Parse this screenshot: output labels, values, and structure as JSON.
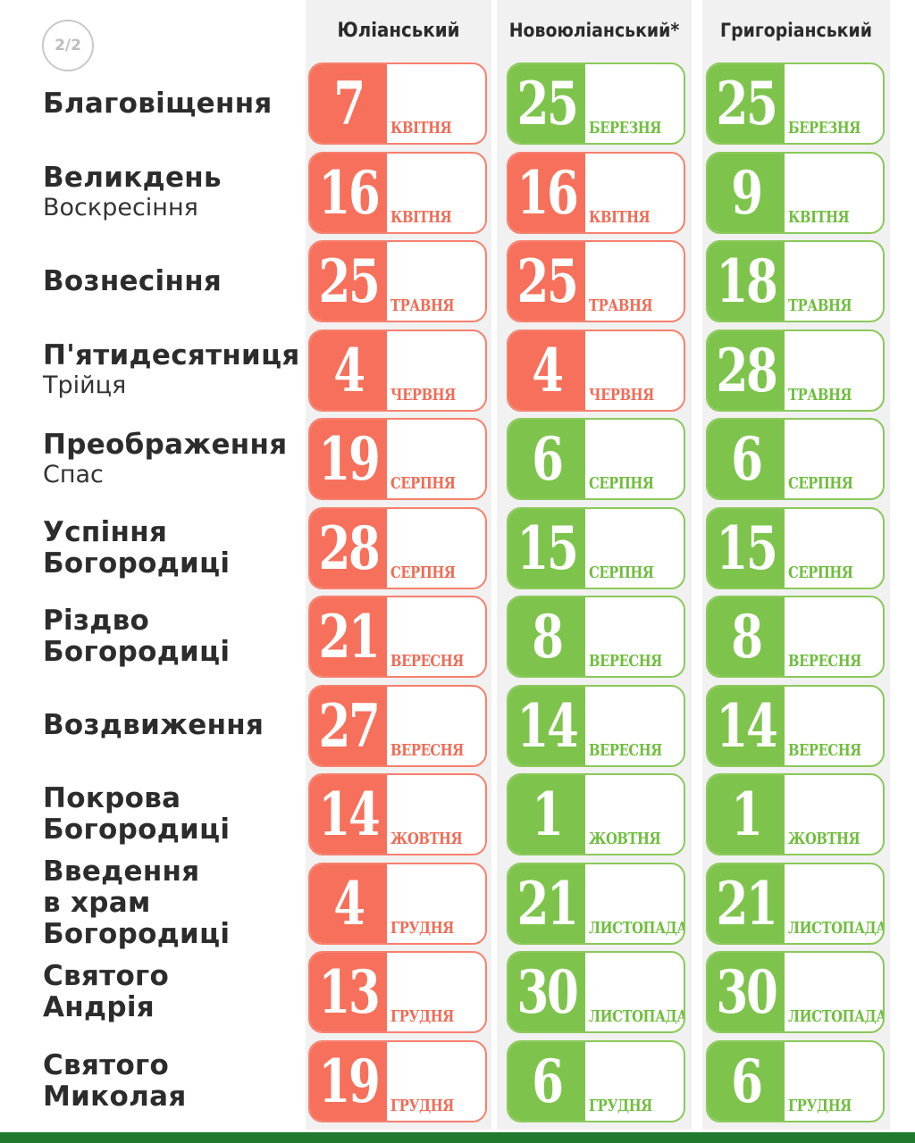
{
  "page_indicator": "2/2",
  "columns": [
    "Юліанський",
    "Новоюліанський*",
    "Григоріанський"
  ],
  "colors": {
    "julian": "#f7705b",
    "new_calendar": "#7ec44c",
    "footer": "#1f7a2e"
  },
  "rows": [
    {
      "title": "Благовіщення",
      "subtitle": "",
      "dates": [
        {
          "day": "7",
          "month": "квітня",
          "style": "red"
        },
        {
          "day": "25",
          "month": "березня",
          "style": "green"
        },
        {
          "day": "25",
          "month": "березня",
          "style": "green"
        }
      ]
    },
    {
      "title": "Великдень",
      "subtitle": "Воскресіння",
      "dates": [
        {
          "day": "16",
          "month": "квітня",
          "style": "red"
        },
        {
          "day": "16",
          "month": "квітня",
          "style": "red"
        },
        {
          "day": "9",
          "month": "квітня",
          "style": "green"
        }
      ]
    },
    {
      "title": "Вознесіння",
      "subtitle": "",
      "dates": [
        {
          "day": "25",
          "month": "травня",
          "style": "red"
        },
        {
          "day": "25",
          "month": "травня",
          "style": "red"
        },
        {
          "day": "18",
          "month": "травня",
          "style": "green"
        }
      ]
    },
    {
      "title": "П'ятидесятниця",
      "subtitle": "Трійця",
      "dates": [
        {
          "day": "4",
          "month": "червня",
          "style": "red"
        },
        {
          "day": "4",
          "month": "червня",
          "style": "red"
        },
        {
          "day": "28",
          "month": "травня",
          "style": "green"
        }
      ]
    },
    {
      "title": "Преображення",
      "subtitle": "Спас",
      "dates": [
        {
          "day": "19",
          "month": "серпня",
          "style": "red"
        },
        {
          "day": "6",
          "month": "серпня",
          "style": "green"
        },
        {
          "day": "6",
          "month": "серпня",
          "style": "green"
        }
      ]
    },
    {
      "title": "Успіння\nБогородиці",
      "subtitle": "",
      "dates": [
        {
          "day": "28",
          "month": "серпня",
          "style": "red"
        },
        {
          "day": "15",
          "month": "серпня",
          "style": "green"
        },
        {
          "day": "15",
          "month": "серпня",
          "style": "green"
        }
      ]
    },
    {
      "title": "Різдво\nБогородиці",
      "subtitle": "",
      "dates": [
        {
          "day": "21",
          "month": "вересня",
          "style": "red"
        },
        {
          "day": "8",
          "month": "вересня",
          "style": "green"
        },
        {
          "day": "8",
          "month": "вересня",
          "style": "green"
        }
      ]
    },
    {
      "title": "Воздвиження",
      "subtitle": "",
      "dates": [
        {
          "day": "27",
          "month": "вересня",
          "style": "red"
        },
        {
          "day": "14",
          "month": "вересня",
          "style": "green"
        },
        {
          "day": "14",
          "month": "вересня",
          "style": "green"
        }
      ]
    },
    {
      "title": "Покрова\nБогородиці",
      "subtitle": "",
      "dates": [
        {
          "day": "14",
          "month": "жовтня",
          "style": "red"
        },
        {
          "day": "1",
          "month": "жовтня",
          "style": "green"
        },
        {
          "day": "1",
          "month": "жовтня",
          "style": "green"
        }
      ]
    },
    {
      "title": "Введення\nв храм\nБогородиці",
      "subtitle": "",
      "dates": [
        {
          "day": "4",
          "month": "грудня",
          "style": "red"
        },
        {
          "day": "21",
          "month": "листопада",
          "style": "green"
        },
        {
          "day": "21",
          "month": "листопада",
          "style": "green"
        }
      ]
    },
    {
      "title": "Святого\nАндрія",
      "subtitle": "",
      "dates": [
        {
          "day": "13",
          "month": "грудня",
          "style": "red"
        },
        {
          "day": "30",
          "month": "листопада",
          "style": "green"
        },
        {
          "day": "30",
          "month": "листопада",
          "style": "green"
        }
      ]
    },
    {
      "title": "Святого\nМиколая",
      "subtitle": "",
      "dates": [
        {
          "day": "19",
          "month": "грудня",
          "style": "red"
        },
        {
          "day": "6",
          "month": "грудня",
          "style": "green"
        },
        {
          "day": "6",
          "month": "грудня",
          "style": "green"
        }
      ]
    }
  ]
}
